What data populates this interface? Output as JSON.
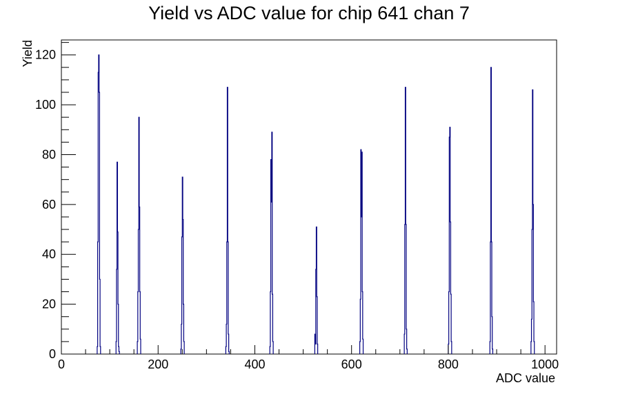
{
  "chart_data": {
    "type": "bar",
    "title": "Yield vs ADC value for chip 641 chan 7",
    "xlabel": "ADC value",
    "ylabel": "Yield",
    "xlim": [
      0,
      1024
    ],
    "ylim": [
      0,
      126
    ],
    "x_major_ticks": [
      0,
      200,
      400,
      600,
      800,
      1000
    ],
    "y_major_ticks": [
      0,
      20,
      40,
      60,
      80,
      100,
      120
    ],
    "grid": false,
    "legend": "none",
    "color": "#000080",
    "bin_width": 1,
    "series": [
      {
        "bins": [
          {
            "x": 74,
            "y": 3
          },
          {
            "x": 75,
            "y": 45
          },
          {
            "x": 76,
            "y": 113
          },
          {
            "x": 77,
            "y": 120
          },
          {
            "x": 78,
            "y": 105
          },
          {
            "x": 79,
            "y": 30
          },
          {
            "x": 80,
            "y": 3
          },
          {
            "x": 113,
            "y": 5
          },
          {
            "x": 114,
            "y": 34
          },
          {
            "x": 115,
            "y": 77
          },
          {
            "x": 116,
            "y": 49
          },
          {
            "x": 117,
            "y": 20
          },
          {
            "x": 118,
            "y": 3
          },
          {
            "x": 119,
            "y": 1
          },
          {
            "x": 157,
            "y": 5
          },
          {
            "x": 158,
            "y": 25
          },
          {
            "x": 159,
            "y": 50
          },
          {
            "x": 160,
            "y": 95
          },
          {
            "x": 161,
            "y": 59
          },
          {
            "x": 162,
            "y": 25
          },
          {
            "x": 163,
            "y": 6
          },
          {
            "x": 247,
            "y": 2
          },
          {
            "x": 248,
            "y": 12
          },
          {
            "x": 249,
            "y": 47
          },
          {
            "x": 250,
            "y": 71
          },
          {
            "x": 251,
            "y": 54
          },
          {
            "x": 252,
            "y": 20
          },
          {
            "x": 253,
            "y": 5
          },
          {
            "x": 340,
            "y": 3
          },
          {
            "x": 341,
            "y": 12
          },
          {
            "x": 342,
            "y": 45
          },
          {
            "x": 343,
            "y": 107
          },
          {
            "x": 344,
            "y": 45
          },
          {
            "x": 345,
            "y": 8
          },
          {
            "x": 346,
            "y": 1
          },
          {
            "x": 431,
            "y": 3
          },
          {
            "x": 432,
            "y": 25
          },
          {
            "x": 433,
            "y": 78
          },
          {
            "x": 434,
            "y": 61
          },
          {
            "x": 435,
            "y": 89
          },
          {
            "x": 436,
            "y": 24
          },
          {
            "x": 437,
            "y": 5
          },
          {
            "x": 524,
            "y": 8
          },
          {
            "x": 525,
            "y": 4
          },
          {
            "x": 526,
            "y": 34
          },
          {
            "x": 527,
            "y": 51
          },
          {
            "x": 528,
            "y": 23
          },
          {
            "x": 529,
            "y": 4
          },
          {
            "x": 617,
            "y": 5
          },
          {
            "x": 618,
            "y": 22
          },
          {
            "x": 619,
            "y": 82
          },
          {
            "x": 620,
            "y": 55
          },
          {
            "x": 621,
            "y": 81
          },
          {
            "x": 622,
            "y": 25
          },
          {
            "x": 623,
            "y": 6
          },
          {
            "x": 709,
            "y": 8
          },
          {
            "x": 710,
            "y": 52
          },
          {
            "x": 711,
            "y": 107
          },
          {
            "x": 712,
            "y": 52
          },
          {
            "x": 713,
            "y": 10
          },
          {
            "x": 714,
            "y": 2
          },
          {
            "x": 800,
            "y": 4
          },
          {
            "x": 801,
            "y": 25
          },
          {
            "x": 802,
            "y": 87
          },
          {
            "x": 803,
            "y": 91
          },
          {
            "x": 804,
            "y": 53
          },
          {
            "x": 805,
            "y": 24
          },
          {
            "x": 806,
            "y": 5
          },
          {
            "x": 886,
            "y": 5
          },
          {
            "x": 887,
            "y": 45
          },
          {
            "x": 888,
            "y": 115
          },
          {
            "x": 889,
            "y": 45
          },
          {
            "x": 890,
            "y": 15
          },
          {
            "x": 891,
            "y": 2
          },
          {
            "x": 971,
            "y": 5
          },
          {
            "x": 972,
            "y": 14
          },
          {
            "x": 973,
            "y": 50
          },
          {
            "x": 974,
            "y": 106
          },
          {
            "x": 975,
            "y": 60
          },
          {
            "x": 976,
            "y": 21
          },
          {
            "x": 977,
            "y": 5
          }
        ]
      }
    ]
  }
}
